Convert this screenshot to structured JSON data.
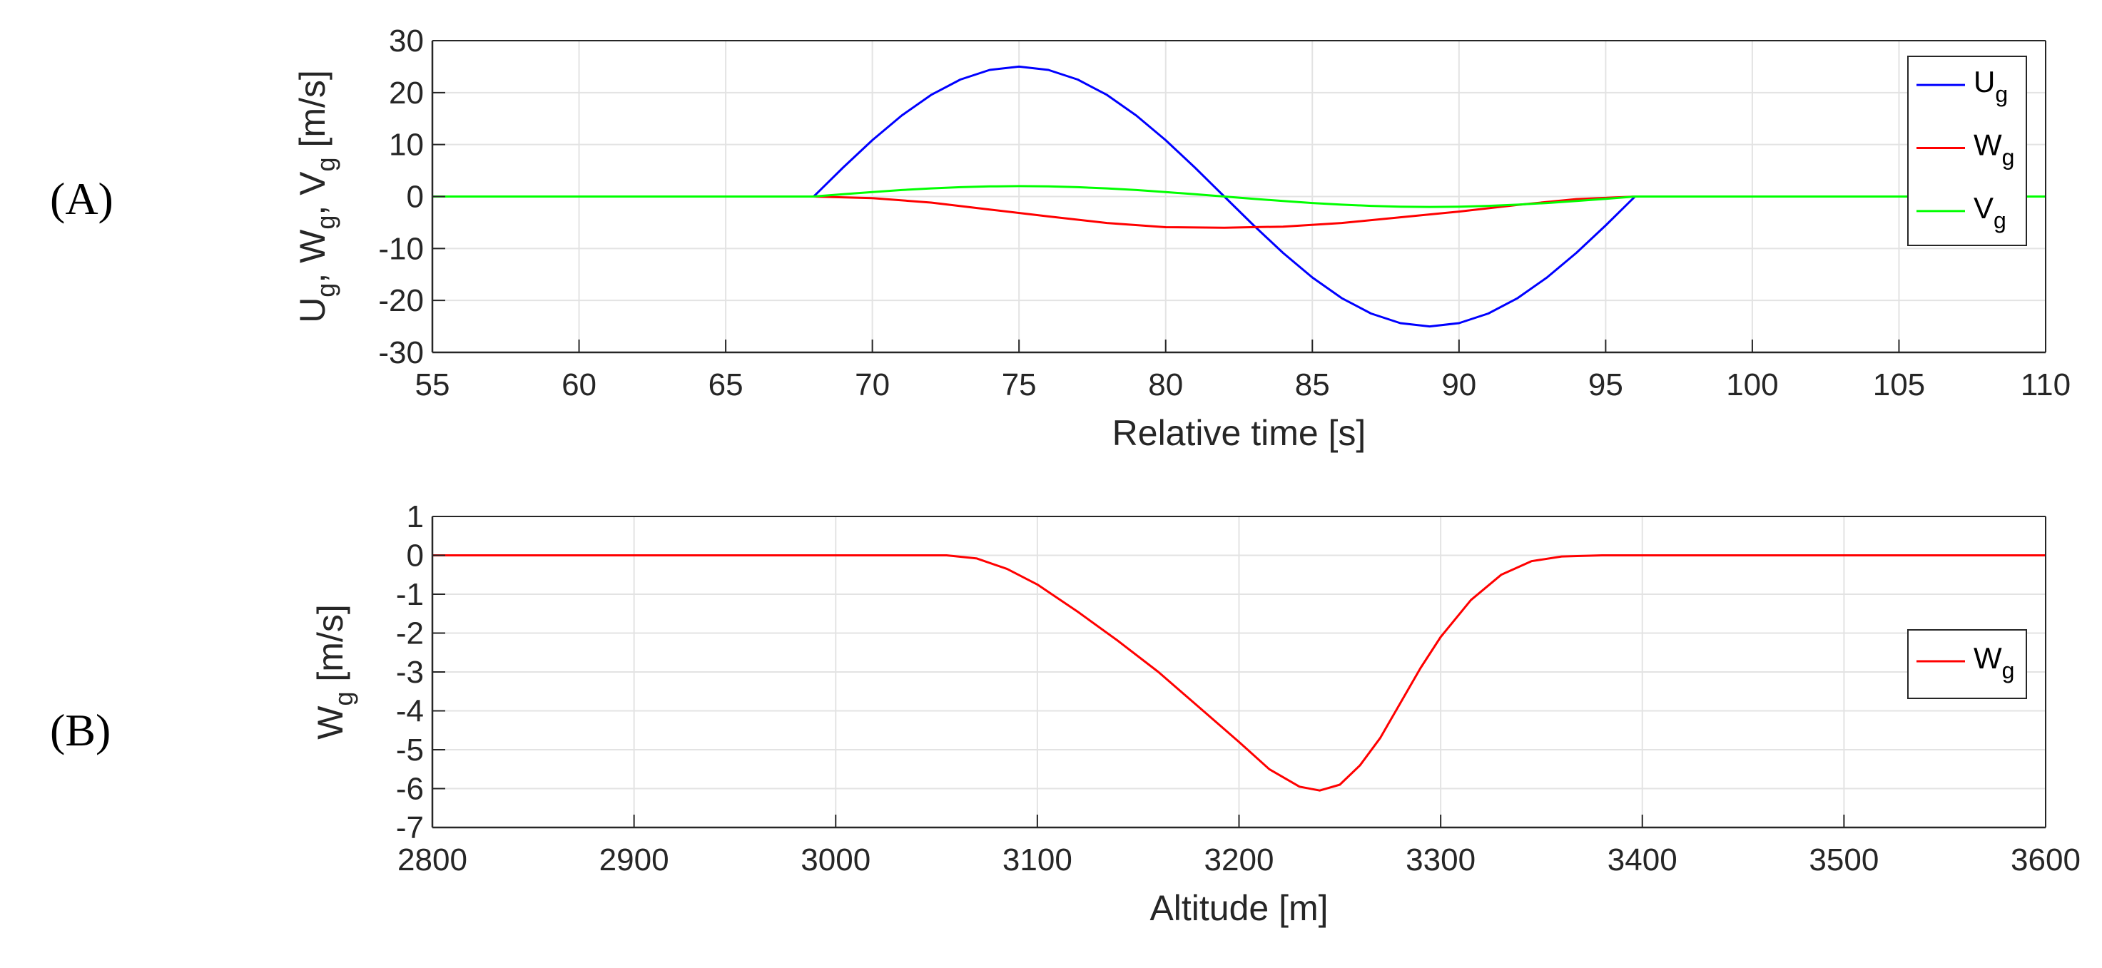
{
  "chart_data": [
    {
      "type": "line",
      "panel_label": "(A)",
      "xlabel": "Relative time [s]",
      "ylabel": {
        "parts": [
          [
            "U",
            "g"
          ],
          [
            "W",
            "g"
          ],
          [
            "V",
            "g"
          ]
        ],
        "unit": "[m/s]"
      },
      "xlim": [
        55,
        110
      ],
      "ylim": [
        -30,
        30
      ],
      "xticks": [
        55,
        60,
        65,
        70,
        75,
        80,
        85,
        90,
        95,
        100,
        105,
        110
      ],
      "yticks": [
        -30,
        -20,
        -10,
        0,
        10,
        20,
        30
      ],
      "grid": true,
      "legend": {
        "position": "top-right"
      },
      "gust_interval": [
        68,
        96
      ],
      "series": [
        {
          "name": "U",
          "subscript": "g",
          "color": "#0000ff",
          "x": [
            55,
            68,
            69,
            70,
            71,
            72,
            73,
            74,
            75,
            76,
            77,
            78,
            79,
            80,
            81,
            82,
            83,
            84,
            85,
            86,
            87,
            88,
            89,
            90,
            91,
            92,
            93,
            94,
            95,
            96,
            110
          ],
          "y": [
            0,
            0,
            5.56,
            10.85,
            15.59,
            19.55,
            22.52,
            24.37,
            25.0,
            24.37,
            22.52,
            19.55,
            15.59,
            10.85,
            5.56,
            0,
            -5.56,
            -10.85,
            -15.59,
            -19.55,
            -22.52,
            -24.37,
            -25.0,
            -24.37,
            -22.52,
            -19.55,
            -15.59,
            -10.85,
            -5.56,
            0,
            0
          ]
        },
        {
          "name": "W",
          "subscript": "g",
          "color": "#ff0000",
          "x": [
            55,
            68,
            70,
            72,
            74,
            76,
            78,
            80,
            82,
            84,
            86,
            88,
            90,
            92,
            94,
            96,
            110
          ],
          "y": [
            0,
            0,
            -0.3,
            -1.17,
            -2.5,
            -3.83,
            -5.1,
            -5.9,
            -6.0,
            -5.8,
            -5.1,
            -4.0,
            -2.9,
            -1.6,
            -0.5,
            0,
            0
          ]
        },
        {
          "name": "V",
          "subscript": "g",
          "color": "#00ff00",
          "x": [
            55,
            68,
            69,
            70,
            71,
            72,
            73,
            74,
            75,
            76,
            77,
            78,
            79,
            80,
            81,
            82,
            83,
            84,
            85,
            86,
            87,
            88,
            89,
            90,
            91,
            92,
            93,
            94,
            95,
            96,
            110
          ],
          "y": [
            0,
            0,
            0.44,
            0.87,
            1.25,
            1.56,
            1.8,
            1.95,
            2.0,
            1.95,
            1.8,
            1.56,
            1.25,
            0.87,
            0.44,
            0,
            -0.44,
            -0.87,
            -1.25,
            -1.56,
            -1.8,
            -1.95,
            -2.0,
            -1.95,
            -1.8,
            -1.56,
            -1.25,
            -0.87,
            -0.44,
            0,
            0
          ]
        }
      ]
    },
    {
      "type": "line",
      "panel_label": "(B)",
      "xlabel": "Altitude [m]",
      "ylabel": {
        "parts": [
          [
            "W",
            "g"
          ]
        ],
        "unit": "[m/s]"
      },
      "xlim": [
        2800,
        3600
      ],
      "ylim": [
        -7,
        1
      ],
      "xticks": [
        2800,
        2900,
        3000,
        3100,
        3200,
        3300,
        3400,
        3500,
        3600
      ],
      "yticks": [
        -7,
        -6,
        -5,
        -4,
        -3,
        -2,
        -1,
        0,
        1
      ],
      "grid": true,
      "legend": {
        "position": "right"
      },
      "series": [
        {
          "name": "W",
          "subscript": "g",
          "color": "#ff0000",
          "x": [
            2800,
            3055,
            3070,
            3085,
            3100,
            3120,
            3140,
            3160,
            3180,
            3200,
            3215,
            3230,
            3240,
            3250,
            3260,
            3270,
            3280,
            3290,
            3300,
            3315,
            3330,
            3345,
            3360,
            3380,
            3600
          ],
          "y": [
            0,
            0,
            -0.08,
            -0.35,
            -0.75,
            -1.45,
            -2.2,
            -3.0,
            -3.9,
            -4.8,
            -5.5,
            -5.95,
            -6.05,
            -5.9,
            -5.4,
            -4.7,
            -3.8,
            -2.9,
            -2.1,
            -1.15,
            -0.5,
            -0.15,
            -0.03,
            0,
            0
          ]
        }
      ]
    }
  ]
}
